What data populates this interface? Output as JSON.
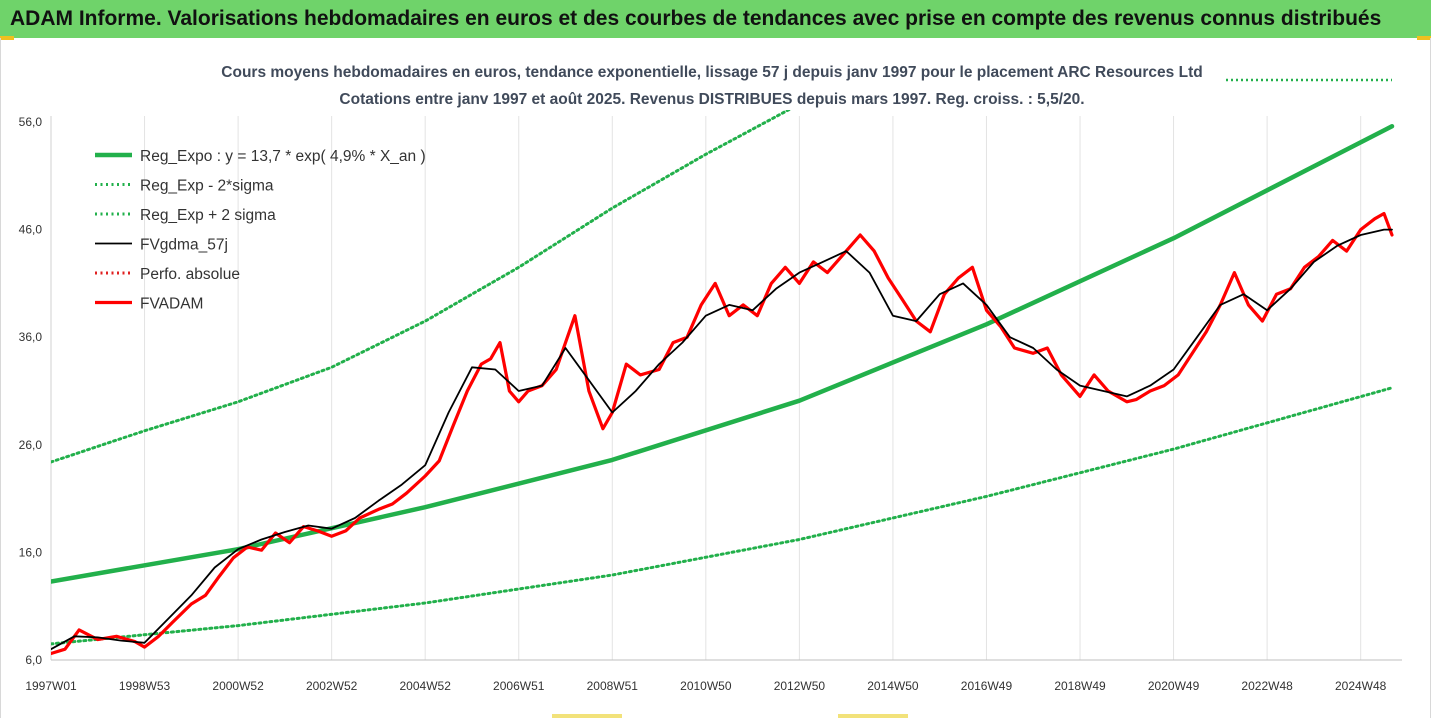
{
  "header": {
    "banner_title": "ADAM Informe. Valorisations hebdomadaires en euros et des courbes de tendances avec prise en compte des revenus connus distribués"
  },
  "colors": {
    "banner_bg": "#6fd36a",
    "trend_green": "#22b04b",
    "band_green": "#22b04b",
    "price_red": "#ff0000",
    "smooth_black": "#000000",
    "perfo_red": "#e02020"
  },
  "chart_data": {
    "type": "line",
    "title_line1": "Cours moyens hebdomadaires en euros, tendance exponentielle, lissage 57 j depuis janv 1997 pour le placement ARC Resources Ltd",
    "title_line2": "Cotations entre janv 1997 et août 2025. Revenus DISTRIBUES depuis mars 1997. Reg. croiss. : 5,5/20.",
    "xlabel": "",
    "ylabel": "",
    "ylim": [
      6.0,
      56.0
    ],
    "xlim": [
      1997.0,
      2025.67
    ],
    "y_ticks": [
      "6,0",
      "16,0",
      "26,0",
      "36,0",
      "46,0",
      "56,0"
    ],
    "y_tick_values": [
      6,
      16,
      26,
      36,
      46,
      56
    ],
    "x_ticks": [
      "1997W01",
      "1998W53",
      "2000W52",
      "2002W52",
      "2004W52",
      "2006W51",
      "2008W51",
      "2010W50",
      "2012W50",
      "2014W50",
      "2016W49",
      "2018W49",
      "2020W49",
      "2022W48",
      "2024W48"
    ],
    "x_tick_values": [
      1997.0,
      1999.0,
      2001.0,
      2003.0,
      2005.0,
      2007.0,
      2009.0,
      2011.0,
      2013.0,
      2015.0,
      2017.0,
      2019.0,
      2021.0,
      2023.0,
      2025.0
    ],
    "legend_position": "top-left",
    "gridlines": "vertical",
    "series": [
      {
        "name": "Reg_Expo : y = 13,7 * exp( 4,9% *  X_an )",
        "style": "solid-thick",
        "color": "#22b04b",
        "x": [
          1997.0,
          2001.0,
          2005.0,
          2009.0,
          2013.0,
          2017.0,
          2021.0,
          2025.67
        ],
        "y": [
          13.3,
          16.3,
          20.2,
          24.6,
          30.1,
          37.2,
          45.2,
          55.6
        ]
      },
      {
        "name": "Reg_Exp - 2*sigma",
        "style": "dotted",
        "color": "#22b04b",
        "x": [
          1997.0,
          2001.0,
          2005.0,
          2009.0,
          2013.0,
          2017.0,
          2021.0,
          2025.67
        ],
        "y": [
          7.5,
          9.2,
          11.3,
          13.9,
          17.2,
          21.2,
          25.6,
          31.3
        ]
      },
      {
        "name": "Reg_Exp + 2 sigma",
        "style": "dotted",
        "color": "#22b04b",
        "x": [
          1997.0,
          1999.0,
          2001.0,
          2003.0,
          2005.0,
          2007.0,
          2009.0,
          2011.0,
          2012.8
        ],
        "y": [
          24.4,
          27.3,
          30.0,
          33.2,
          37.5,
          42.5,
          48.0,
          53.0,
          57.2
        ]
      },
      {
        "name": "FVgdma_57j",
        "style": "solid",
        "color": "#000000",
        "x": [
          1997.0,
          1997.5,
          1998.0,
          1998.5,
          1999.0,
          1999.5,
          2000.0,
          2000.5,
          2001.0,
          2001.5,
          2002.0,
          2002.5,
          2003.0,
          2003.5,
          2004.0,
          2004.5,
          2005.0,
          2005.5,
          2006.0,
          2006.5,
          2007.0,
          2007.5,
          2008.0,
          2008.5,
          2009.0,
          2009.5,
          2010.0,
          2010.5,
          2011.0,
          2011.5,
          2012.0,
          2012.5,
          2013.0,
          2013.5,
          2014.0,
          2014.5,
          2015.0,
          2015.5,
          2016.0,
          2016.5,
          2017.0,
          2017.5,
          2018.0,
          2018.5,
          2019.0,
          2019.5,
          2020.0,
          2020.5,
          2021.0,
          2021.5,
          2022.0,
          2022.5,
          2023.0,
          2023.5,
          2024.0,
          2024.5,
          2025.0,
          2025.5,
          2025.67
        ],
        "y": [
          7.0,
          8.2,
          8.1,
          7.8,
          7.6,
          9.8,
          12.0,
          14.6,
          16.3,
          17.2,
          17.9,
          18.5,
          18.2,
          19.2,
          20.8,
          22.3,
          24.1,
          29.0,
          33.2,
          33.0,
          31.0,
          31.5,
          35.0,
          32.0,
          29.0,
          31.0,
          33.5,
          35.5,
          38.0,
          39.0,
          38.5,
          40.5,
          42.0,
          43.0,
          44.0,
          42.0,
          38.0,
          37.5,
          40.0,
          41.0,
          39.0,
          36.0,
          35.0,
          33.0,
          31.5,
          31.0,
          30.5,
          31.5,
          33.0,
          36.0,
          39.0,
          40.0,
          38.5,
          40.5,
          43.0,
          44.5,
          45.5,
          46.0,
          46.0
        ]
      },
      {
        "name": "Perfo. absolue",
        "style": "dotted",
        "color": "#e02020",
        "x": [],
        "y": []
      },
      {
        "name": "FVADAM",
        "style": "solid-thick",
        "color": "#ff0000",
        "x": [
          1997.0,
          1997.3,
          1997.6,
          1998.0,
          1998.4,
          1998.8,
          1999.0,
          1999.3,
          1999.6,
          2000.0,
          2000.3,
          2000.6,
          2000.9,
          2001.2,
          2001.5,
          2001.8,
          2002.1,
          2002.4,
          2002.7,
          2003.0,
          2003.3,
          2003.6,
          2004.0,
          2004.3,
          2004.6,
          2005.0,
          2005.3,
          2005.6,
          2005.9,
          2006.2,
          2006.4,
          2006.6,
          2006.8,
          2007.0,
          2007.2,
          2007.5,
          2007.8,
          2008.0,
          2008.2,
          2008.5,
          2008.8,
          2009.0,
          2009.3,
          2009.6,
          2010.0,
          2010.3,
          2010.6,
          2010.9,
          2011.2,
          2011.5,
          2011.8,
          2012.1,
          2012.4,
          2012.7,
          2013.0,
          2013.3,
          2013.6,
          2014.0,
          2014.3,
          2014.6,
          2014.9,
          2015.2,
          2015.5,
          2015.8,
          2016.1,
          2016.4,
          2016.7,
          2017.0,
          2017.3,
          2017.6,
          2018.0,
          2018.3,
          2018.6,
          2019.0,
          2019.3,
          2019.6,
          2020.0,
          2020.2,
          2020.5,
          2020.8,
          2021.1,
          2021.4,
          2021.7,
          2022.0,
          2022.3,
          2022.6,
          2022.9,
          2023.2,
          2023.5,
          2023.8,
          2024.1,
          2024.4,
          2024.7,
          2025.0,
          2025.3,
          2025.5,
          2025.67
        ],
        "y": [
          6.6,
          7.0,
          8.8,
          7.9,
          8.2,
          7.7,
          7.2,
          8.2,
          9.5,
          11.2,
          12.0,
          13.8,
          15.5,
          16.5,
          16.2,
          17.8,
          16.9,
          18.4,
          18.0,
          17.5,
          18.0,
          19.2,
          20.0,
          20.5,
          21.5,
          23.1,
          24.5,
          27.8,
          31.0,
          33.5,
          34.0,
          35.5,
          31.0,
          30.0,
          31.0,
          31.5,
          33.0,
          35.5,
          38.0,
          31.0,
          27.5,
          29.0,
          33.5,
          32.5,
          33.0,
          35.5,
          36.0,
          39.0,
          41.0,
          38.0,
          39.0,
          38.0,
          41.0,
          42.5,
          41.0,
          43.0,
          42.0,
          44.0,
          45.5,
          44.0,
          41.5,
          39.5,
          37.5,
          36.5,
          40.0,
          41.5,
          42.5,
          38.5,
          37.0,
          35.0,
          34.5,
          35.0,
          32.5,
          30.5,
          32.5,
          31.0,
          30.0,
          30.2,
          31.0,
          31.5,
          32.5,
          34.5,
          36.5,
          39.0,
          42.0,
          39.0,
          37.5,
          40.0,
          40.5,
          42.5,
          43.5,
          45.0,
          44.0,
          46.0,
          47.0,
          47.5,
          45.5
        ]
      }
    ]
  }
}
